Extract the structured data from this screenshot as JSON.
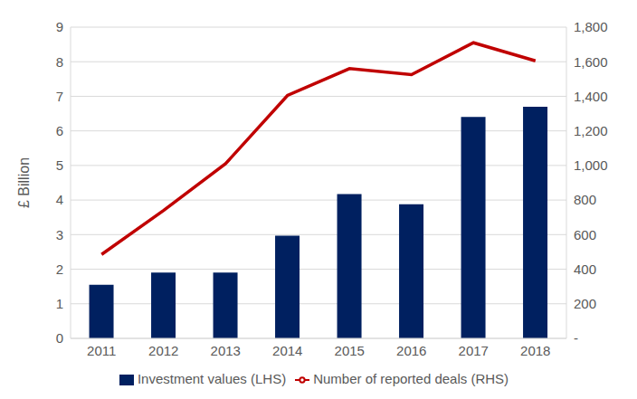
{
  "chart_data": {
    "type": "bar",
    "categories": [
      "2011",
      "2012",
      "2013",
      "2014",
      "2015",
      "2016",
      "2017",
      "2018"
    ],
    "y_label": "£ Billion",
    "ylim": [
      0,
      9
    ],
    "yticks": [
      0,
      1,
      2,
      3,
      4,
      5,
      6,
      7,
      8,
      9
    ],
    "y2lim": [
      0,
      1800
    ],
    "y2ticks": [
      {
        "value": 0,
        "label": "-"
      },
      200,
      400,
      600,
      800,
      {
        "value": 1000,
        "label": "1,000"
      },
      {
        "value": 1200,
        "label": "1,200"
      },
      {
        "value": 1400,
        "label": "1,400"
      },
      {
        "value": 1600,
        "label": "1,600"
      },
      {
        "value": 1800,
        "label": "1,800"
      }
    ],
    "grid": true,
    "legend": "bottom",
    "series": [
      {
        "name": "Investment values (LHS)",
        "type": "bar",
        "color": "#002060",
        "values": [
          1.55,
          1.9,
          1.9,
          2.97,
          4.17,
          3.88,
          6.4,
          6.7
        ]
      },
      {
        "name": "Number of reported deals (RHS)",
        "type": "line",
        "axis": "y2",
        "color": "#c00000",
        "values": [
          485,
          740,
          1010,
          1405,
          1560,
          1525,
          1710,
          1605
        ]
      }
    ]
  }
}
